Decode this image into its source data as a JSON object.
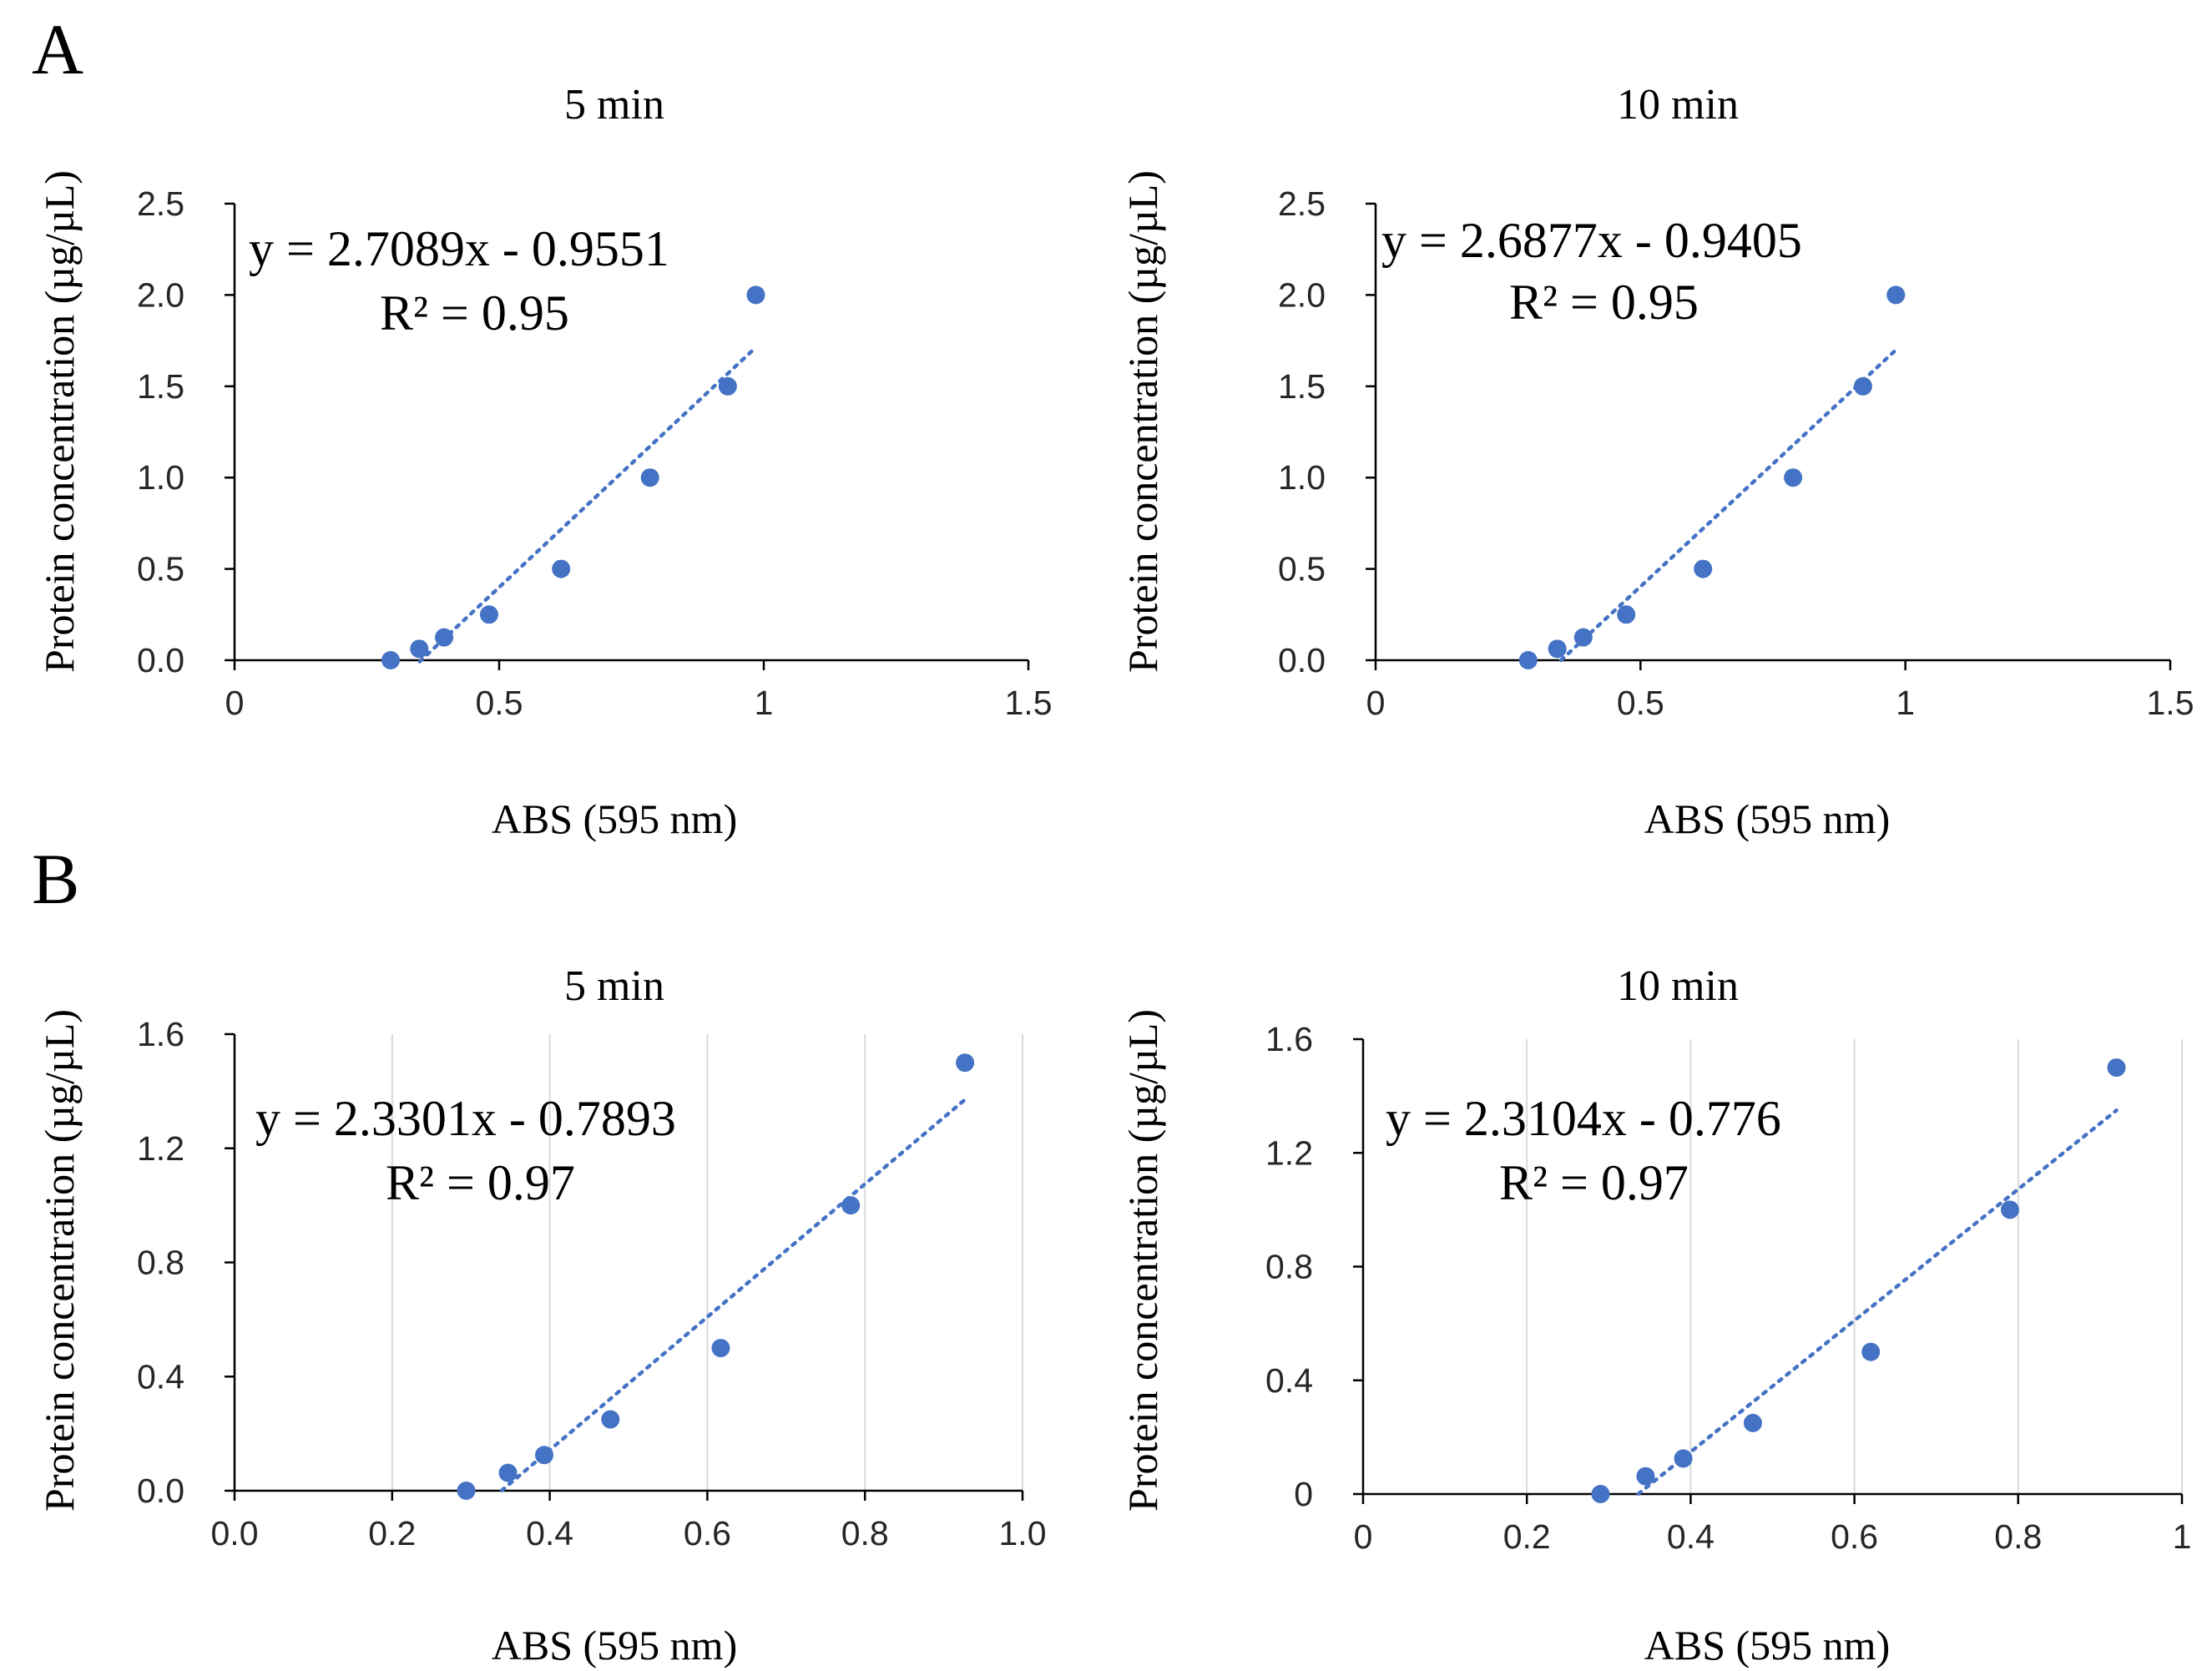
{
  "panel_labels": [
    "A",
    "B"
  ],
  "chart_data": [
    {
      "type": "scatter",
      "panel": "A",
      "title": "5 min",
      "xlabel": "ABS (595 nm)",
      "ylabel": "Protein concentration (µg/µL)",
      "xlim": [
        0,
        1.5
      ],
      "ylim": [
        0,
        2.5
      ],
      "xticks": [
        "0",
        "0.5",
        "1",
        "1.5"
      ],
      "xtick_values": [
        0,
        0.5,
        1,
        1.5
      ],
      "yticks": [
        "0.0",
        "0.5",
        "1.0",
        "1.5",
        "2.0",
        "2.5"
      ],
      "ytick_values": [
        0,
        0.5,
        1,
        1.5,
        2,
        2.5
      ],
      "grid": false,
      "series": [
        {
          "x": [
            0.295,
            0.349,
            0.396,
            0.481,
            0.617,
            0.785,
            0.932,
            0.985
          ],
          "y": [
            0,
            0.0625,
            0.125,
            0.25,
            0.5,
            1.0,
            1.5,
            2.0
          ],
          "color": "#4472c4"
        }
      ],
      "trendline": {
        "type": "linear",
        "slope": 2.7089,
        "intercept": -0.9551,
        "x_range": [
          0.35,
          0.985
        ]
      },
      "equation": "y = 2.7089x - 0.9551",
      "r2_text": "R² = 0.95"
    },
    {
      "type": "scatter",
      "panel": "A",
      "title": "10 min",
      "xlabel": "ABS (595 nm)",
      "ylabel": "Protein concentration (µg/µL)",
      "xlim": [
        0,
        1.5
      ],
      "ylim": [
        0,
        2.5
      ],
      "xticks": [
        "0",
        "0.5",
        "1",
        "1.5"
      ],
      "xtick_values": [
        0,
        0.5,
        1,
        1.5
      ],
      "yticks": [
        "0.0",
        "0.5",
        "1.0",
        "1.5",
        "2.0",
        "2.5"
      ],
      "ytick_values": [
        0,
        0.5,
        1,
        1.5,
        2,
        2.5
      ],
      "grid": false,
      "series": [
        {
          "x": [
            0.288,
            0.343,
            0.392,
            0.473,
            0.618,
            0.788,
            0.92,
            0.982
          ],
          "y": [
            0,
            0.0625,
            0.125,
            0.25,
            0.5,
            1.0,
            1.5,
            2.0
          ],
          "color": "#4472c4"
        }
      ],
      "trendline": {
        "type": "linear",
        "slope": 2.6877,
        "intercept": -0.9405,
        "x_range": [
          0.35,
          0.982
        ]
      },
      "equation": "y = 2.6877x - 0.9405",
      "r2_text": "R² = 0.95"
    },
    {
      "type": "scatter",
      "panel": "B",
      "title": "5 min",
      "xlabel": "ABS (595 nm)",
      "ylabel": "Protein concentration (µg/µL)",
      "xlim": [
        0,
        1.0
      ],
      "ylim": [
        0,
        1.6
      ],
      "xticks": [
        "0.0",
        "0.2",
        "0.4",
        "0.6",
        "0.8",
        "1.0"
      ],
      "xtick_values": [
        0,
        0.2,
        0.4,
        0.6,
        0.8,
        1.0
      ],
      "yticks": [
        "0.0",
        "0.4",
        "0.8",
        "1.2",
        "1.6"
      ],
      "ytick_values": [
        0,
        0.4,
        0.8,
        1.2,
        1.6
      ],
      "grid": true,
      "series": [
        {
          "x": [
            0.294,
            0.347,
            0.393,
            0.477,
            0.617,
            0.782,
            0.927
          ],
          "y": [
            0,
            0.0625,
            0.125,
            0.25,
            0.5,
            1.0,
            1.5
          ],
          "color": "#4472c4"
        }
      ],
      "trendline": {
        "type": "linear",
        "slope": 2.3301,
        "intercept": -0.7893,
        "x_range": [
          0.339,
          0.927
        ]
      },
      "equation": "y = 2.3301x - 0.7893",
      "r2_text": "R² = 0.97"
    },
    {
      "type": "scatter",
      "panel": "B",
      "title": "10 min",
      "xlabel": "ABS (595 nm)",
      "ylabel": "Protein concentration (µg/µL)",
      "xlim": [
        0,
        1
      ],
      "ylim": [
        0,
        1.6
      ],
      "xticks": [
        "0",
        "0.2",
        "0.4",
        "0.6",
        "0.8",
        "1"
      ],
      "xtick_values": [
        0,
        0.2,
        0.4,
        0.6,
        0.8,
        1
      ],
      "yticks": [
        "0",
        "0.4",
        "0.8",
        "1.2",
        "1.6"
      ],
      "ytick_values": [
        0,
        0.4,
        0.8,
        1.2,
        1.6
      ],
      "grid": true,
      "series": [
        {
          "x": [
            0.29,
            0.345,
            0.391,
            0.476,
            0.62,
            0.79,
            0.92
          ],
          "y": [
            0,
            0.0625,
            0.125,
            0.25,
            0.5,
            1.0,
            1.5
          ],
          "color": "#4472c4"
        }
      ],
      "trendline": {
        "type": "linear",
        "slope": 2.3104,
        "intercept": -0.776,
        "x_range": [
          0.336,
          0.92
        ]
      },
      "equation": "y = 2.3104x - 0.776",
      "r2_text": "R² = 0.97"
    }
  ]
}
